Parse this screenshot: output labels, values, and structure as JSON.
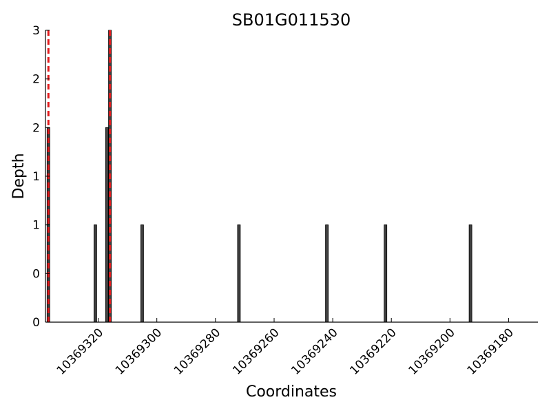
{
  "chart_data": {
    "type": "bar",
    "title": "SB01G011530",
    "xlabel": "Coordinates",
    "ylabel": "Depth",
    "x_axis_reversed": true,
    "xlim": [
      10369338,
      10369170
    ],
    "ylim": [
      0,
      3
    ],
    "y_tick_values": [
      0,
      0.5,
      1,
      1.5,
      2,
      2.5,
      3
    ],
    "y_tick_labels": [
      "0",
      "0",
      "1",
      "1",
      "2",
      "2",
      "3"
    ],
    "x_tick_values": [
      10369320,
      10369300,
      10369280,
      10369260,
      10369240,
      10369220,
      10369200,
      10369180
    ],
    "x_tick_labels": [
      "10369320",
      "10369300",
      "10369280",
      "10369260",
      "10369240",
      "10369220",
      "10369200",
      "10369180"
    ],
    "bar_color": "#404040",
    "bars": [
      {
        "x": 10369337,
        "value": 2
      },
      {
        "x": 10369321,
        "value": 1
      },
      {
        "x": 10369317,
        "value": 2
      },
      {
        "x": 10369316,
        "value": 3
      },
      {
        "x": 10369305,
        "value": 1
      },
      {
        "x": 10369272,
        "value": 1
      },
      {
        "x": 10369242,
        "value": 1
      },
      {
        "x": 10369222,
        "value": 1
      },
      {
        "x": 10369193,
        "value": 1
      }
    ],
    "reference_lines": [
      {
        "x": 10369337,
        "color": "#e31a1c",
        "style": "dashed"
      },
      {
        "x": 10369316,
        "color": "#e31a1c",
        "style": "dashed"
      }
    ],
    "grid": false,
    "legend": "none"
  }
}
